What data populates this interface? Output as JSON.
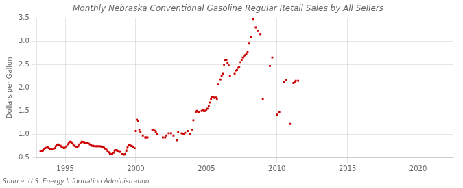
{
  "chart_data": {
    "type": "scatter",
    "title": "Monthly Nebraska Conventional Gasoline Regular Retail Sales by All Sellers",
    "ylabel": "Dollars per Gallon",
    "source": "Source: U.S. Energy Information Administration",
    "xlim": [
      1993.0,
      2022.5
    ],
    "ylim": [
      0.5,
      3.5
    ],
    "xticks": [
      1995,
      2000,
      2005,
      2010,
      2015,
      2020
    ],
    "yticks": [
      0.5,
      {
        "value": 1.0,
        "label": "1.0"
      },
      1.5,
      {
        "value": 2.0,
        "label": "2.0"
      },
      2.5,
      {
        "value": 3.0,
        "label": "3.0"
      },
      3.5
    ],
    "grid": true,
    "series": [
      {
        "type": "line",
        "color": "#cc0000",
        "marker": "square",
        "x": [
          1993.25,
          1993.33,
          1993.42,
          1993.5,
          1993.58,
          1993.67,
          1993.75,
          1993.83,
          1993.92,
          1994.0,
          1994.08,
          1994.17,
          1994.25,
          1994.33,
          1994.42,
          1994.5,
          1994.58,
          1994.67,
          1994.75,
          1994.83,
          1994.92,
          1995.0,
          1995.08,
          1995.17,
          1995.25,
          1995.33,
          1995.42,
          1995.5,
          1995.58,
          1995.67,
          1995.75,
          1995.83,
          1995.92,
          1996.0,
          1996.08,
          1996.17,
          1996.25,
          1996.33,
          1996.42,
          1996.5,
          1996.58,
          1996.67,
          1996.75,
          1996.83,
          1996.92,
          1997.0,
          1997.08,
          1997.17,
          1997.25,
          1997.33,
          1997.42,
          1997.5,
          1997.58,
          1997.67,
          1997.75,
          1997.83,
          1997.92,
          1998.0,
          1998.08,
          1998.17,
          1998.25,
          1998.33,
          1998.42,
          1998.5,
          1998.58,
          1998.67,
          1998.75,
          1998.83,
          1998.92,
          1999.0,
          1999.08,
          1999.17,
          1999.25,
          1999.33,
          1999.42,
          1999.5,
          1999.58,
          1999.67,
          1999.75,
          1999.83,
          1999.92
        ],
        "values": [
          0.63,
          0.64,
          0.65,
          0.67,
          0.7,
          0.71,
          0.72,
          0.7,
          0.68,
          0.67,
          0.67,
          0.67,
          0.7,
          0.74,
          0.77,
          0.78,
          0.77,
          0.75,
          0.73,
          0.71,
          0.7,
          0.71,
          0.74,
          0.78,
          0.82,
          0.84,
          0.83,
          0.82,
          0.78,
          0.75,
          0.73,
          0.73,
          0.74,
          0.78,
          0.82,
          0.84,
          0.83,
          0.83,
          0.82,
          0.82,
          0.82,
          0.8,
          0.78,
          0.76,
          0.75,
          0.75,
          0.74,
          0.74,
          0.74,
          0.74,
          0.74,
          0.74,
          0.73,
          0.72,
          0.71,
          0.69,
          0.67,
          0.64,
          0.61,
          0.58,
          0.57,
          0.57,
          0.6,
          0.65,
          0.66,
          0.65,
          0.63,
          0.62,
          0.62,
          0.57,
          0.57,
          0.56,
          0.57,
          0.64,
          0.73,
          0.76,
          0.76,
          0.75,
          0.74,
          0.73,
          0.7
        ]
      },
      {
        "type": "scatter",
        "color": "#cc0000",
        "marker": "square",
        "x": [
          2000.0,
          2000.08,
          2000.17,
          2000.25,
          2000.33,
          2000.5,
          2000.67,
          2000.75,
          2000.83,
          2001.17,
          2001.25,
          2001.33,
          2001.42,
          2001.5,
          2001.92,
          2002.08,
          2002.17,
          2002.33,
          2002.5,
          2002.67,
          2002.92,
          2003.0,
          2003.25,
          2003.33,
          2003.42,
          2003.5,
          2003.67,
          2003.83,
          2004.0,
          2004.08,
          2004.25,
          2004.33,
          2004.42,
          2004.5,
          2004.67,
          2004.75,
          2004.83,
          2004.92,
          2005.0,
          2005.08,
          2005.17,
          2005.25,
          2005.33,
          2005.42,
          2005.5,
          2005.58,
          2005.67,
          2005.75,
          2005.83,
          2006.0,
          2006.08,
          2006.17,
          2006.25,
          2006.33,
          2006.42,
          2006.5,
          2006.58,
          2006.67,
          2007.0,
          2007.08,
          2007.17,
          2007.25,
          2007.33,
          2007.42,
          2007.5,
          2007.58,
          2007.67,
          2007.75,
          2007.83,
          2007.92,
          2008.0,
          2008.17,
          2008.33,
          2008.5,
          2008.67,
          2008.83,
          2009.0,
          2009.5,
          2009.67,
          2010.0,
          2010.17,
          2010.5,
          2010.67,
          2010.92,
          2011.17,
          2011.25,
          2011.33,
          2011.5
        ],
        "values": [
          1.07,
          1.31,
          1.28,
          1.1,
          1.05,
          0.97,
          0.93,
          0.93,
          0.93,
          1.1,
          1.1,
          1.08,
          1.05,
          1.0,
          0.93,
          0.93,
          0.97,
          1.02,
          1.02,
          0.97,
          0.87,
          1.05,
          1.02,
          1.0,
          1.0,
          1.03,
          1.07,
          1.0,
          1.1,
          1.3,
          1.47,
          1.5,
          1.48,
          1.48,
          1.5,
          1.52,
          1.5,
          1.5,
          1.53,
          1.55,
          1.6,
          1.68,
          1.75,
          1.8,
          1.8,
          1.78,
          1.79,
          1.75,
          2.07,
          2.18,
          2.25,
          2.3,
          2.5,
          2.6,
          2.6,
          2.53,
          2.48,
          2.25,
          2.3,
          2.37,
          2.38,
          2.43,
          2.45,
          2.55,
          2.6,
          2.65,
          2.68,
          2.7,
          2.73,
          2.77,
          2.95,
          3.1,
          3.48,
          3.3,
          3.22,
          3.15,
          1.75,
          2.47,
          2.65,
          1.42,
          1.48,
          2.12,
          2.17,
          1.22,
          2.1,
          2.13,
          2.15,
          2.15
        ]
      }
    ]
  }
}
